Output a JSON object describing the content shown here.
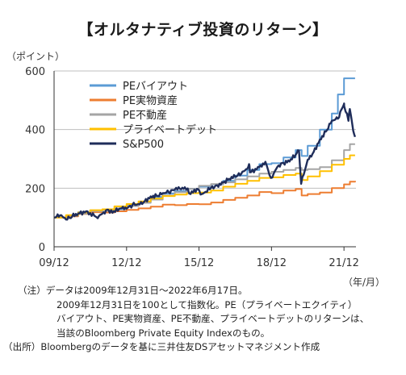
{
  "chart_data": {
    "type": "line",
    "title": "【オルタナティブ投資のリターン】",
    "ylabel": "（ポイント）",
    "xlabel": "（年/月）",
    "ylim": [
      0,
      600
    ],
    "yticks": [
      0,
      200,
      400,
      600
    ],
    "x_domain": [
      "2009-12-31",
      "2022-06-17"
    ],
    "xticks": [
      {
        "label": "09/12",
        "date": "2009-12-31"
      },
      {
        "label": "12/12",
        "date": "2012-12-31"
      },
      {
        "label": "15/12",
        "date": "2015-12-31"
      },
      {
        "label": "18/12",
        "date": "2018-12-31"
      },
      {
        "label": "21/12",
        "date": "2021-12-31"
      }
    ],
    "legend_position": "top-left",
    "series": [
      {
        "name": "PEバイアウト",
        "color": "#5b9bd5",
        "values": [
          [
            "2009-12-31",
            100
          ],
          [
            "2010-06-30",
            107
          ],
          [
            "2010-12-31",
            118
          ],
          [
            "2011-06-30",
            124
          ],
          [
            "2011-12-31",
            118
          ],
          [
            "2012-06-30",
            128
          ],
          [
            "2012-12-31",
            140
          ],
          [
            "2013-06-30",
            152
          ],
          [
            "2013-12-31",
            170
          ],
          [
            "2014-06-30",
            182
          ],
          [
            "2014-12-31",
            190
          ],
          [
            "2015-06-30",
            198
          ],
          [
            "2015-12-31",
            205
          ],
          [
            "2016-06-30",
            213
          ],
          [
            "2016-12-31",
            225
          ],
          [
            "2017-06-30",
            243
          ],
          [
            "2017-12-31",
            262
          ],
          [
            "2018-06-30",
            282
          ],
          [
            "2018-12-31",
            285
          ],
          [
            "2019-06-30",
            305
          ],
          [
            "2019-12-31",
            330
          ],
          [
            "2020-03-31",
            310
          ],
          [
            "2020-06-30",
            345
          ],
          [
            "2020-12-31",
            400
          ],
          [
            "2021-06-30",
            455
          ],
          [
            "2021-09-30",
            520
          ],
          [
            "2021-12-31",
            575
          ],
          [
            "2022-06-17",
            575
          ]
        ]
      },
      {
        "name": "PE実物資産",
        "color": "#ed7d31",
        "values": [
          [
            "2009-12-31",
            100
          ],
          [
            "2010-06-30",
            104
          ],
          [
            "2010-12-31",
            112
          ],
          [
            "2011-06-30",
            118
          ],
          [
            "2011-12-31",
            117
          ],
          [
            "2012-06-30",
            121
          ],
          [
            "2012-12-31",
            126
          ],
          [
            "2013-06-30",
            131
          ],
          [
            "2013-12-31",
            137
          ],
          [
            "2014-06-30",
            144
          ],
          [
            "2014-12-31",
            142
          ],
          [
            "2015-06-30",
            146
          ],
          [
            "2015-12-31",
            145
          ],
          [
            "2016-06-30",
            151
          ],
          [
            "2016-12-31",
            160
          ],
          [
            "2017-06-30",
            167
          ],
          [
            "2017-12-31",
            175
          ],
          [
            "2018-06-30",
            187
          ],
          [
            "2018-12-31",
            183
          ],
          [
            "2019-06-30",
            192
          ],
          [
            "2019-12-31",
            197
          ],
          [
            "2020-03-31",
            175
          ],
          [
            "2020-06-30",
            180
          ],
          [
            "2020-12-31",
            185
          ],
          [
            "2021-06-30",
            200
          ],
          [
            "2021-12-31",
            213
          ],
          [
            "2022-03-31",
            222
          ],
          [
            "2022-06-17",
            225
          ]
        ]
      },
      {
        "name": "PE不動産",
        "color": "#a5a5a5",
        "values": [
          [
            "2009-12-31",
            100
          ],
          [
            "2010-06-30",
            106
          ],
          [
            "2010-12-31",
            113
          ],
          [
            "2011-06-30",
            122
          ],
          [
            "2011-12-31",
            125
          ],
          [
            "2012-06-30",
            131
          ],
          [
            "2012-12-31",
            139
          ],
          [
            "2013-06-30",
            150
          ],
          [
            "2013-12-31",
            161
          ],
          [
            "2014-06-30",
            175
          ],
          [
            "2014-12-31",
            186
          ],
          [
            "2015-06-30",
            198
          ],
          [
            "2015-12-31",
            208
          ],
          [
            "2016-06-30",
            214
          ],
          [
            "2016-12-31",
            220
          ],
          [
            "2017-06-30",
            230
          ],
          [
            "2017-12-31",
            240
          ],
          [
            "2018-06-30",
            250
          ],
          [
            "2018-12-31",
            256
          ],
          [
            "2019-06-30",
            262
          ],
          [
            "2019-12-31",
            269
          ],
          [
            "2020-03-31",
            262
          ],
          [
            "2020-06-30",
            265
          ],
          [
            "2020-12-31",
            272
          ],
          [
            "2021-06-30",
            295
          ],
          [
            "2021-12-31",
            330
          ],
          [
            "2022-03-31",
            350
          ],
          [
            "2022-06-17",
            350
          ]
        ]
      },
      {
        "name": "プライベートデット",
        "color": "#ffc000",
        "values": [
          [
            "2009-12-31",
            100
          ],
          [
            "2010-06-30",
            108
          ],
          [
            "2010-12-31",
            117
          ],
          [
            "2011-06-30",
            125
          ],
          [
            "2011-12-31",
            128
          ],
          [
            "2012-06-30",
            138
          ],
          [
            "2012-12-31",
            146
          ],
          [
            "2013-06-30",
            155
          ],
          [
            "2013-12-31",
            165
          ],
          [
            "2014-06-30",
            173
          ],
          [
            "2014-12-31",
            178
          ],
          [
            "2015-06-30",
            183
          ],
          [
            "2015-12-31",
            185
          ],
          [
            "2016-06-30",
            192
          ],
          [
            "2016-12-31",
            205
          ],
          [
            "2017-06-30",
            215
          ],
          [
            "2017-12-31",
            225
          ],
          [
            "2018-06-30",
            235
          ],
          [
            "2018-12-31",
            237
          ],
          [
            "2019-06-30",
            245
          ],
          [
            "2019-12-31",
            250
          ],
          [
            "2020-03-31",
            228
          ],
          [
            "2020-06-30",
            240
          ],
          [
            "2020-12-31",
            258
          ],
          [
            "2021-06-30",
            280
          ],
          [
            "2021-12-31",
            300
          ],
          [
            "2022-03-31",
            312
          ],
          [
            "2022-06-17",
            312
          ]
        ]
      },
      {
        "name": "S&P500",
        "color": "#1f2d5a",
        "values": [
          [
            "2009-12-31",
            100
          ],
          [
            "2010-03-31",
            107
          ],
          [
            "2010-06-30",
            93
          ],
          [
            "2010-09-30",
            103
          ],
          [
            "2010-12-31",
            114
          ],
          [
            "2011-04-30",
            121
          ],
          [
            "2011-08-31",
            106
          ],
          [
            "2011-10-04",
            101
          ],
          [
            "2011-12-31",
            113
          ],
          [
            "2012-03-31",
            126
          ],
          [
            "2012-06-01",
            116
          ],
          [
            "2012-09-30",
            131
          ],
          [
            "2012-12-31",
            130
          ],
          [
            "2013-03-31",
            143
          ],
          [
            "2013-06-30",
            146
          ],
          [
            "2013-09-30",
            155
          ],
          [
            "2013-12-31",
            172
          ],
          [
            "2014-03-31",
            174
          ],
          [
            "2014-06-30",
            183
          ],
          [
            "2014-09-30",
            186
          ],
          [
            "2014-12-31",
            195
          ],
          [
            "2015-05-31",
            203
          ],
          [
            "2015-08-25",
            180
          ],
          [
            "2015-11-30",
            198
          ],
          [
            "2016-02-11",
            180
          ],
          [
            "2016-06-30",
            201
          ],
          [
            "2016-09-30",
            210
          ],
          [
            "2016-12-31",
            219
          ],
          [
            "2017-03-31",
            232
          ],
          [
            "2017-06-30",
            239
          ],
          [
            "2017-09-30",
            249
          ],
          [
            "2017-12-31",
            266
          ],
          [
            "2018-01-26",
            282
          ],
          [
            "2018-02-08",
            254
          ],
          [
            "2018-06-30",
            272
          ],
          [
            "2018-09-30",
            290
          ],
          [
            "2018-12-24",
            235
          ],
          [
            "2019-03-31",
            273
          ],
          [
            "2019-06-30",
            286
          ],
          [
            "2019-09-30",
            291
          ],
          [
            "2019-12-31",
            314
          ],
          [
            "2020-02-19",
            328
          ],
          [
            "2020-03-23",
            215
          ],
          [
            "2020-06-30",
            297
          ],
          [
            "2020-09-30",
            324
          ],
          [
            "2020-12-31",
            366
          ],
          [
            "2021-03-31",
            393
          ],
          [
            "2021-06-30",
            430
          ],
          [
            "2021-09-30",
            437
          ],
          [
            "2021-12-31",
            487
          ],
          [
            "2022-01-03",
            480
          ],
          [
            "2022-03-08",
            430
          ],
          [
            "2022-03-29",
            470
          ],
          [
            "2022-05-20",
            396
          ],
          [
            "2022-06-17",
            375
          ]
        ]
      }
    ]
  },
  "notes": {
    "line1": "（注）データは2009年12月31日～2022年6月17日。",
    "line2": "2009年12月31日を100として指数化。PE（プライベートエクイティ）",
    "line3": "バイアウト、PE実物資産、PE不動産、プライベートデットのリターンは、",
    "line4": "当該のBloomberg Private Equity Indexのもの。",
    "source": "（出所）Bloombergのデータを基に三井住友DSアセットマネジメント作成"
  }
}
